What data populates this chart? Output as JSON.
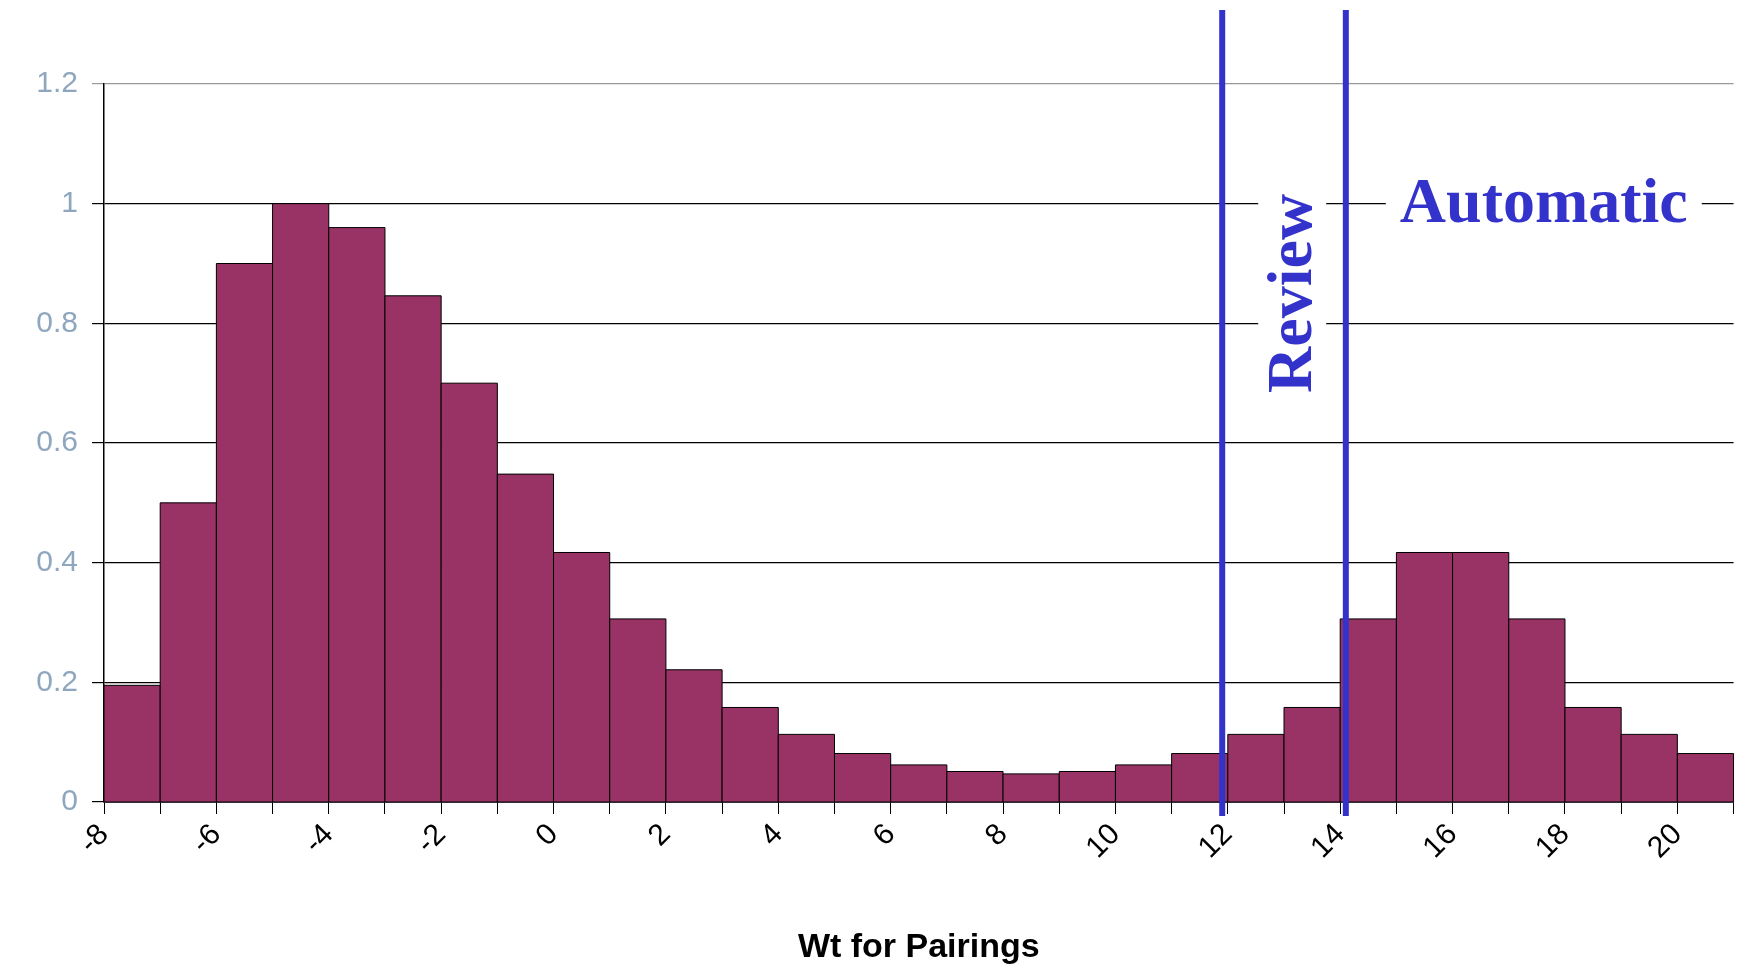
{
  "chart_data": {
    "type": "histogram",
    "xlabel": "Wt for Pairings",
    "bins": [
      -8,
      -7,
      -6,
      -5,
      -4,
      -3,
      -2,
      -1,
      0,
      1,
      2,
      3,
      4,
      5,
      6,
      7,
      8,
      9,
      10,
      11,
      12,
      13,
      14,
      15,
      16,
      17,
      18,
      19,
      20,
      21
    ],
    "values": [
      0.195,
      0.5,
      0.9,
      1.0,
      0.96,
      0.846,
      0.7,
      0.548,
      0.417,
      0.306,
      0.221,
      0.158,
      0.113,
      0.081,
      0.062,
      0.051,
      0.047,
      0.051,
      0.062,
      0.081,
      0.113,
      0.158,
      0.306,
      0.417,
      0.417,
      0.306,
      0.158,
      0.113,
      0.081
    ],
    "color": "#993366",
    "xlim": [
      -8,
      21
    ],
    "xticks": [
      -8,
      {
        "value": -7,
        "label": null
      },
      -6,
      {
        "value": -5,
        "label": null
      },
      -4,
      {
        "value": -3,
        "label": null
      },
      -2,
      {
        "value": -1,
        "label": null
      },
      0,
      {
        "value": 1,
        "label": null
      },
      2,
      {
        "value": 3,
        "label": null
      },
      4,
      {
        "value": 5,
        "label": null
      },
      6,
      {
        "value": 7,
        "label": null
      },
      8,
      {
        "value": 9,
        "label": null
      },
      10,
      {
        "value": 11,
        "label": null
      },
      12,
      {
        "value": 13,
        "label": null
      },
      14,
      {
        "value": 15,
        "label": null
      },
      16,
      {
        "value": 17,
        "label": null
      },
      18,
      {
        "value": 19,
        "label": null
      },
      20,
      {
        "value": 21,
        "label": null
      }
    ],
    "ylim": [
      0,
      1.2
    ],
    "yticks": [
      0,
      0.2,
      0.4,
      0.6,
      0.8,
      1,
      1.2
    ],
    "grid": "y",
    "ref_lines": [
      {
        "axis": "x",
        "value": 11.9,
        "color": "#3333cc",
        "label": "Review"
      },
      {
        "axis": "x",
        "value": 14.1,
        "color": "#3333cc",
        "label": "Automatic"
      }
    ]
  }
}
